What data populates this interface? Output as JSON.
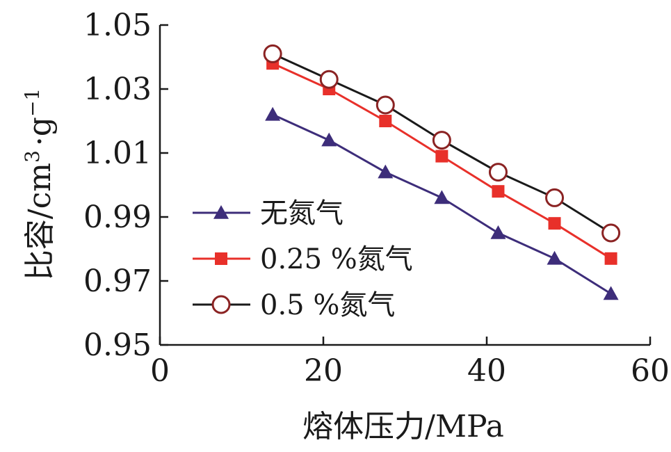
{
  "chart_data": {
    "type": "line",
    "xlabel": "熔体压力/MPa",
    "ylabel": "比容/cm³ · g⁻¹",
    "ylabel_parts": {
      "base": "比容/cm",
      "sup1": "3",
      "mid": "·g",
      "sup2": "−1"
    },
    "xlim": [
      0,
      60
    ],
    "ylim": [
      0.95,
      1.05
    ],
    "xticks": [
      0,
      20,
      40,
      60
    ],
    "yticks": [
      0.95,
      0.97,
      0.99,
      1.01,
      1.03,
      1.05
    ],
    "xtick_labels": [
      "0",
      "20",
      "40",
      "60"
    ],
    "ytick_labels": [
      "0.95",
      "0.97",
      "0.99",
      "1.01",
      "1.03",
      "1.05"
    ],
    "grid": false,
    "legend_position": "lower-left",
    "series": [
      {
        "name": "无氮气",
        "color": "#3d2d7a",
        "marker": "triangle",
        "x": [
          13.8,
          20.7,
          27.6,
          34.5,
          41.4,
          48.3,
          55.2
        ],
        "y": [
          1.022,
          1.014,
          1.004,
          0.996,
          0.985,
          0.977,
          0.966
        ]
      },
      {
        "name": "0.25 %氮气",
        "color": "#e8302a",
        "marker": "square",
        "x": [
          13.8,
          20.7,
          27.6,
          34.5,
          41.4,
          48.3,
          55.2
        ],
        "y": [
          1.038,
          1.03,
          1.02,
          1.009,
          0.998,
          0.988,
          0.977
        ]
      },
      {
        "name": "0.5 %氮气",
        "color": "#1a1a1a",
        "marker_color": "#8b2323",
        "marker": "circle-open",
        "x": [
          13.8,
          20.7,
          27.6,
          34.5,
          41.4,
          48.3,
          55.2
        ],
        "y": [
          1.041,
          1.033,
          1.025,
          1.014,
          1.004,
          0.996,
          0.985
        ]
      }
    ]
  }
}
